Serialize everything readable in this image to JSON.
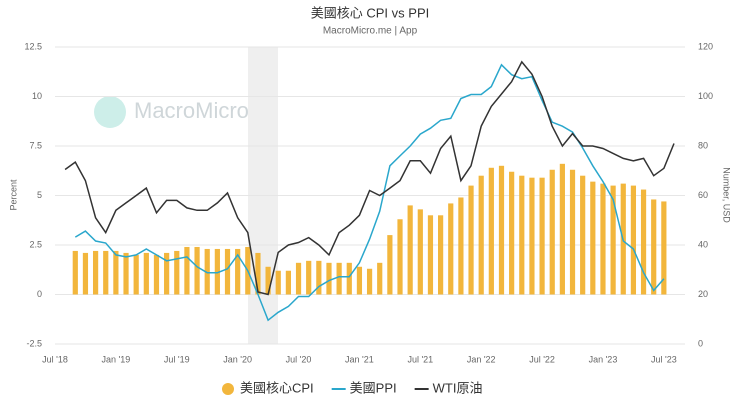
{
  "chart_data": {
    "type": "bar-line",
    "title": "美國核心 CPI vs PPI",
    "subtitle": "MacroMicro.me | App",
    "watermark": "MacroMicro",
    "y_label": "Percent",
    "y2_label": "Number, USD",
    "categories": [
      "Jul '18",
      null,
      null,
      null,
      null,
      null,
      "Jan '19",
      null,
      null,
      null,
      null,
      null,
      "Jul '19",
      null,
      null,
      null,
      null,
      null,
      "Jan '20",
      null,
      null,
      null,
      null,
      null,
      "Jul '20",
      null,
      null,
      null,
      null,
      null,
      "Jan '21",
      null,
      null,
      null,
      null,
      null,
      "Jul '21",
      null,
      null,
      null,
      null,
      null,
      "Jan '22",
      null,
      null,
      null,
      null,
      null,
      "Jul '22",
      null,
      null,
      null,
      null,
      null,
      "Jan '23",
      null,
      null,
      null,
      null,
      null,
      "Jul '23",
      null
    ],
    "ylim": [
      -2.5,
      12.5
    ],
    "yticks": [
      -2.5,
      0,
      2.5,
      5,
      7.5,
      10,
      12.5
    ],
    "y2lim": [
      0,
      120
    ],
    "y2ticks": [
      0,
      20,
      40,
      60,
      80,
      100,
      120
    ],
    "grid": true,
    "legend": "bottom",
    "series": [
      {
        "name": "美國核心CPI",
        "type": "bar",
        "color": "#f2b63c",
        "values": [
          null,
          null,
          2.2,
          2.1,
          2.2,
          2.2,
          2.2,
          2.1,
          2.0,
          2.1,
          2.0,
          2.1,
          2.2,
          2.4,
          2.4,
          2.3,
          2.3,
          2.3,
          2.3,
          2.4,
          2.1,
          1.4,
          1.2,
          1.2,
          1.6,
          1.7,
          1.7,
          1.6,
          1.6,
          1.6,
          1.4,
          1.3,
          1.6,
          3.0,
          3.8,
          4.5,
          4.3,
          4.0,
          4.0,
          4.6,
          4.9,
          5.5,
          6.0,
          6.4,
          6.5,
          6.2,
          6.0,
          5.9,
          5.9,
          6.3,
          6.6,
          6.3,
          6.0,
          5.7,
          5.6,
          5.5,
          5.6,
          5.5,
          5.3,
          4.8,
          4.7,
          null
        ]
      },
      {
        "name": "美國PPI",
        "type": "line",
        "color": "#2aa7cc",
        "values": [
          null,
          null,
          2.9,
          3.2,
          2.7,
          2.6,
          2.0,
          1.9,
          2.0,
          2.3,
          2.0,
          1.7,
          1.8,
          1.9,
          1.4,
          1.1,
          1.1,
          1.3,
          2.0,
          1.2,
          0.0,
          -1.3,
          -0.9,
          -0.6,
          -0.1,
          -0.1,
          0.4,
          0.7,
          0.9,
          0.9,
          1.6,
          2.8,
          4.2,
          6.5,
          7.0,
          7.5,
          8.1,
          8.4,
          8.8,
          8.9,
          9.9,
          10.1,
          10.1,
          10.5,
          11.6,
          11.1,
          10.9,
          11.0,
          9.8,
          8.7,
          8.5,
          8.2,
          7.4,
          6.5,
          5.7,
          4.8,
          2.7,
          2.3,
          1.1,
          0.2,
          0.8,
          null
        ]
      },
      {
        "name": "WTI原油",
        "type": "line",
        "axis": "y2",
        "color": "#333333",
        "values": [
          null,
          70.5,
          73.5,
          66,
          51,
          45,
          54,
          57,
          60,
          63,
          53,
          58,
          58,
          55,
          54,
          54,
          57,
          61,
          51,
          45,
          21,
          20,
          37,
          40,
          41,
          43,
          40,
          36,
          45,
          48,
          52,
          62,
          60,
          63,
          66,
          74,
          74,
          69,
          79,
          84,
          66,
          72,
          88,
          96,
          101,
          106,
          114,
          109,
          100,
          88,
          80,
          85,
          80,
          80,
          79,
          77,
          75,
          74,
          75,
          68,
          71,
          81
        ]
      }
    ]
  }
}
